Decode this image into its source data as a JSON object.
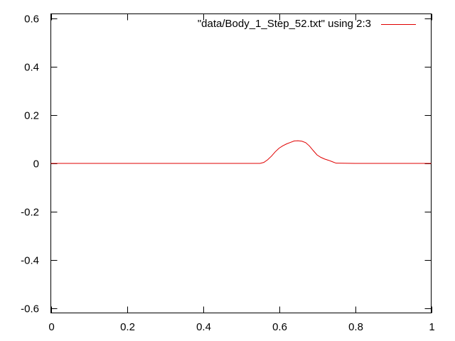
{
  "chart_data": {
    "type": "line",
    "title": "",
    "xlabel": "",
    "ylabel": "",
    "xlim": [
      0,
      1
    ],
    "ylim": [
      -0.62,
      0.62
    ],
    "xticks": [
      0,
      0.2,
      0.4,
      0.6,
      0.8,
      1
    ],
    "xtick_labels": [
      "0",
      "0.2",
      "0.4",
      "0.6",
      "0.8",
      "1"
    ],
    "yticks": [
      -0.6,
      -0.4,
      -0.2,
      0,
      0.2,
      0.4,
      0.6
    ],
    "ytick_labels": [
      "-0.6",
      "-0.4",
      "-0.2",
      "0",
      "0.2",
      "0.4",
      "0.6"
    ],
    "grid": false,
    "legend_position": "top-right",
    "series": [
      {
        "name": "\"data/Body_1_Step_52.txt\" using 2:3",
        "color": "#e00000",
        "x": [
          0,
          0.55,
          0.56,
          0.57,
          0.58,
          0.59,
          0.6,
          0.61,
          0.62,
          0.63,
          0.64,
          0.65,
          0.66,
          0.67,
          0.68,
          0.69,
          0.7,
          0.71,
          0.72,
          0.73,
          0.74,
          0.75,
          0.8,
          1.0
        ],
        "y": [
          0,
          0,
          0.004,
          0.015,
          0.03,
          0.048,
          0.063,
          0.073,
          0.081,
          0.087,
          0.093,
          0.094,
          0.092,
          0.086,
          0.072,
          0.053,
          0.035,
          0.025,
          0.018,
          0.013,
          0.007,
          0.001,
          0,
          0
        ]
      }
    ]
  }
}
